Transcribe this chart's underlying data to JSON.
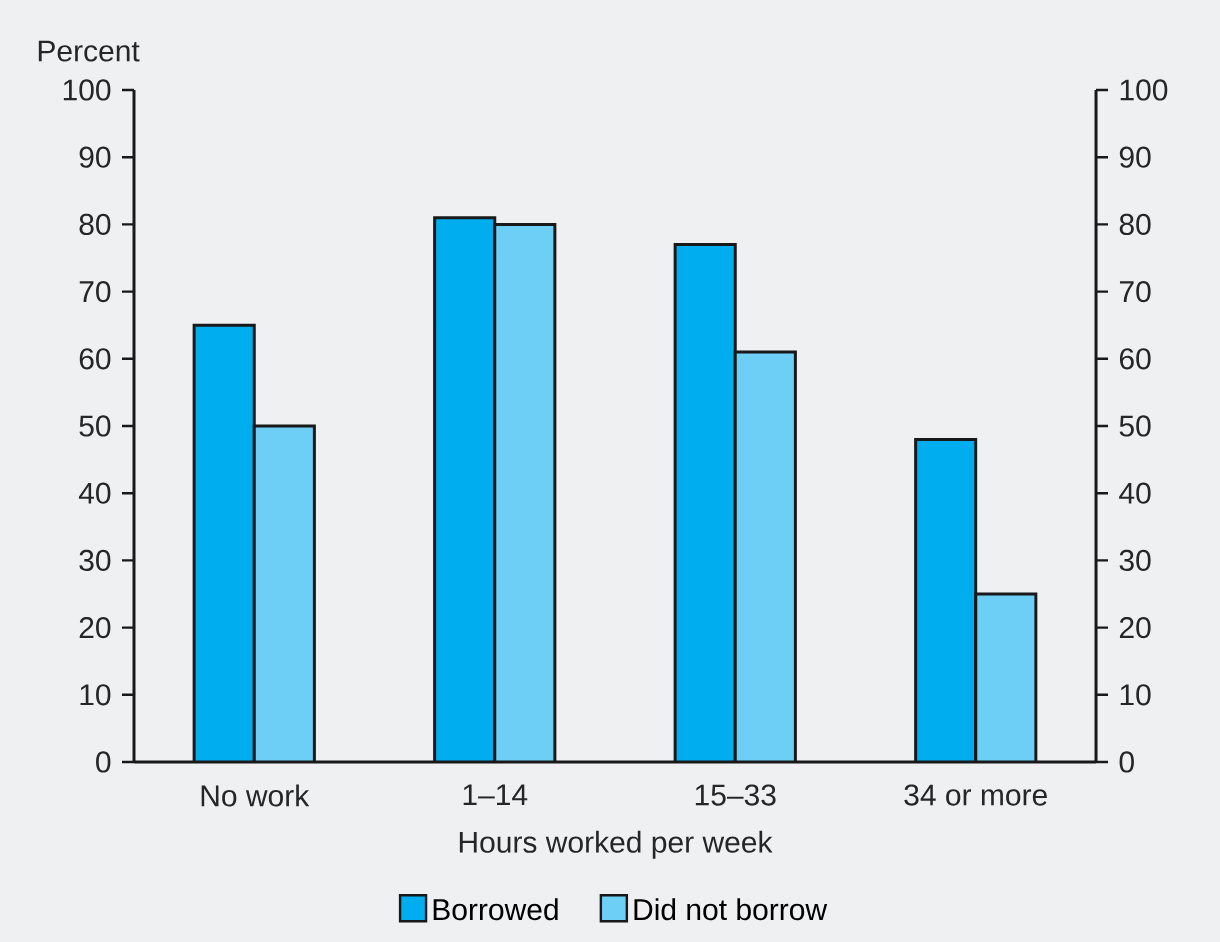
{
  "chart_data": {
    "type": "bar",
    "annotations": [
      "Percent"
    ],
    "xlabel": "Hours worked per week",
    "categories": [
      "No work",
      "1–14",
      "15–33",
      "34 or more"
    ],
    "series": [
      {
        "name": "Borrowed",
        "color": "#00aeef",
        "values": [
          65,
          81,
          77,
          48
        ]
      },
      {
        "name": "Did not borrow",
        "color": "#6dcff6",
        "values": [
          50,
          80,
          61,
          25
        ]
      }
    ],
    "ylim": [
      0,
      100
    ],
    "yticks": [
      0,
      10,
      20,
      30,
      40,
      50,
      60,
      70,
      80,
      90,
      100
    ],
    "y2lim": [
      0,
      100
    ],
    "y2ticks": [
      0,
      10,
      20,
      30,
      40,
      50,
      60,
      70,
      80,
      90,
      100
    ],
    "legend": "bottom",
    "grid": false
  }
}
